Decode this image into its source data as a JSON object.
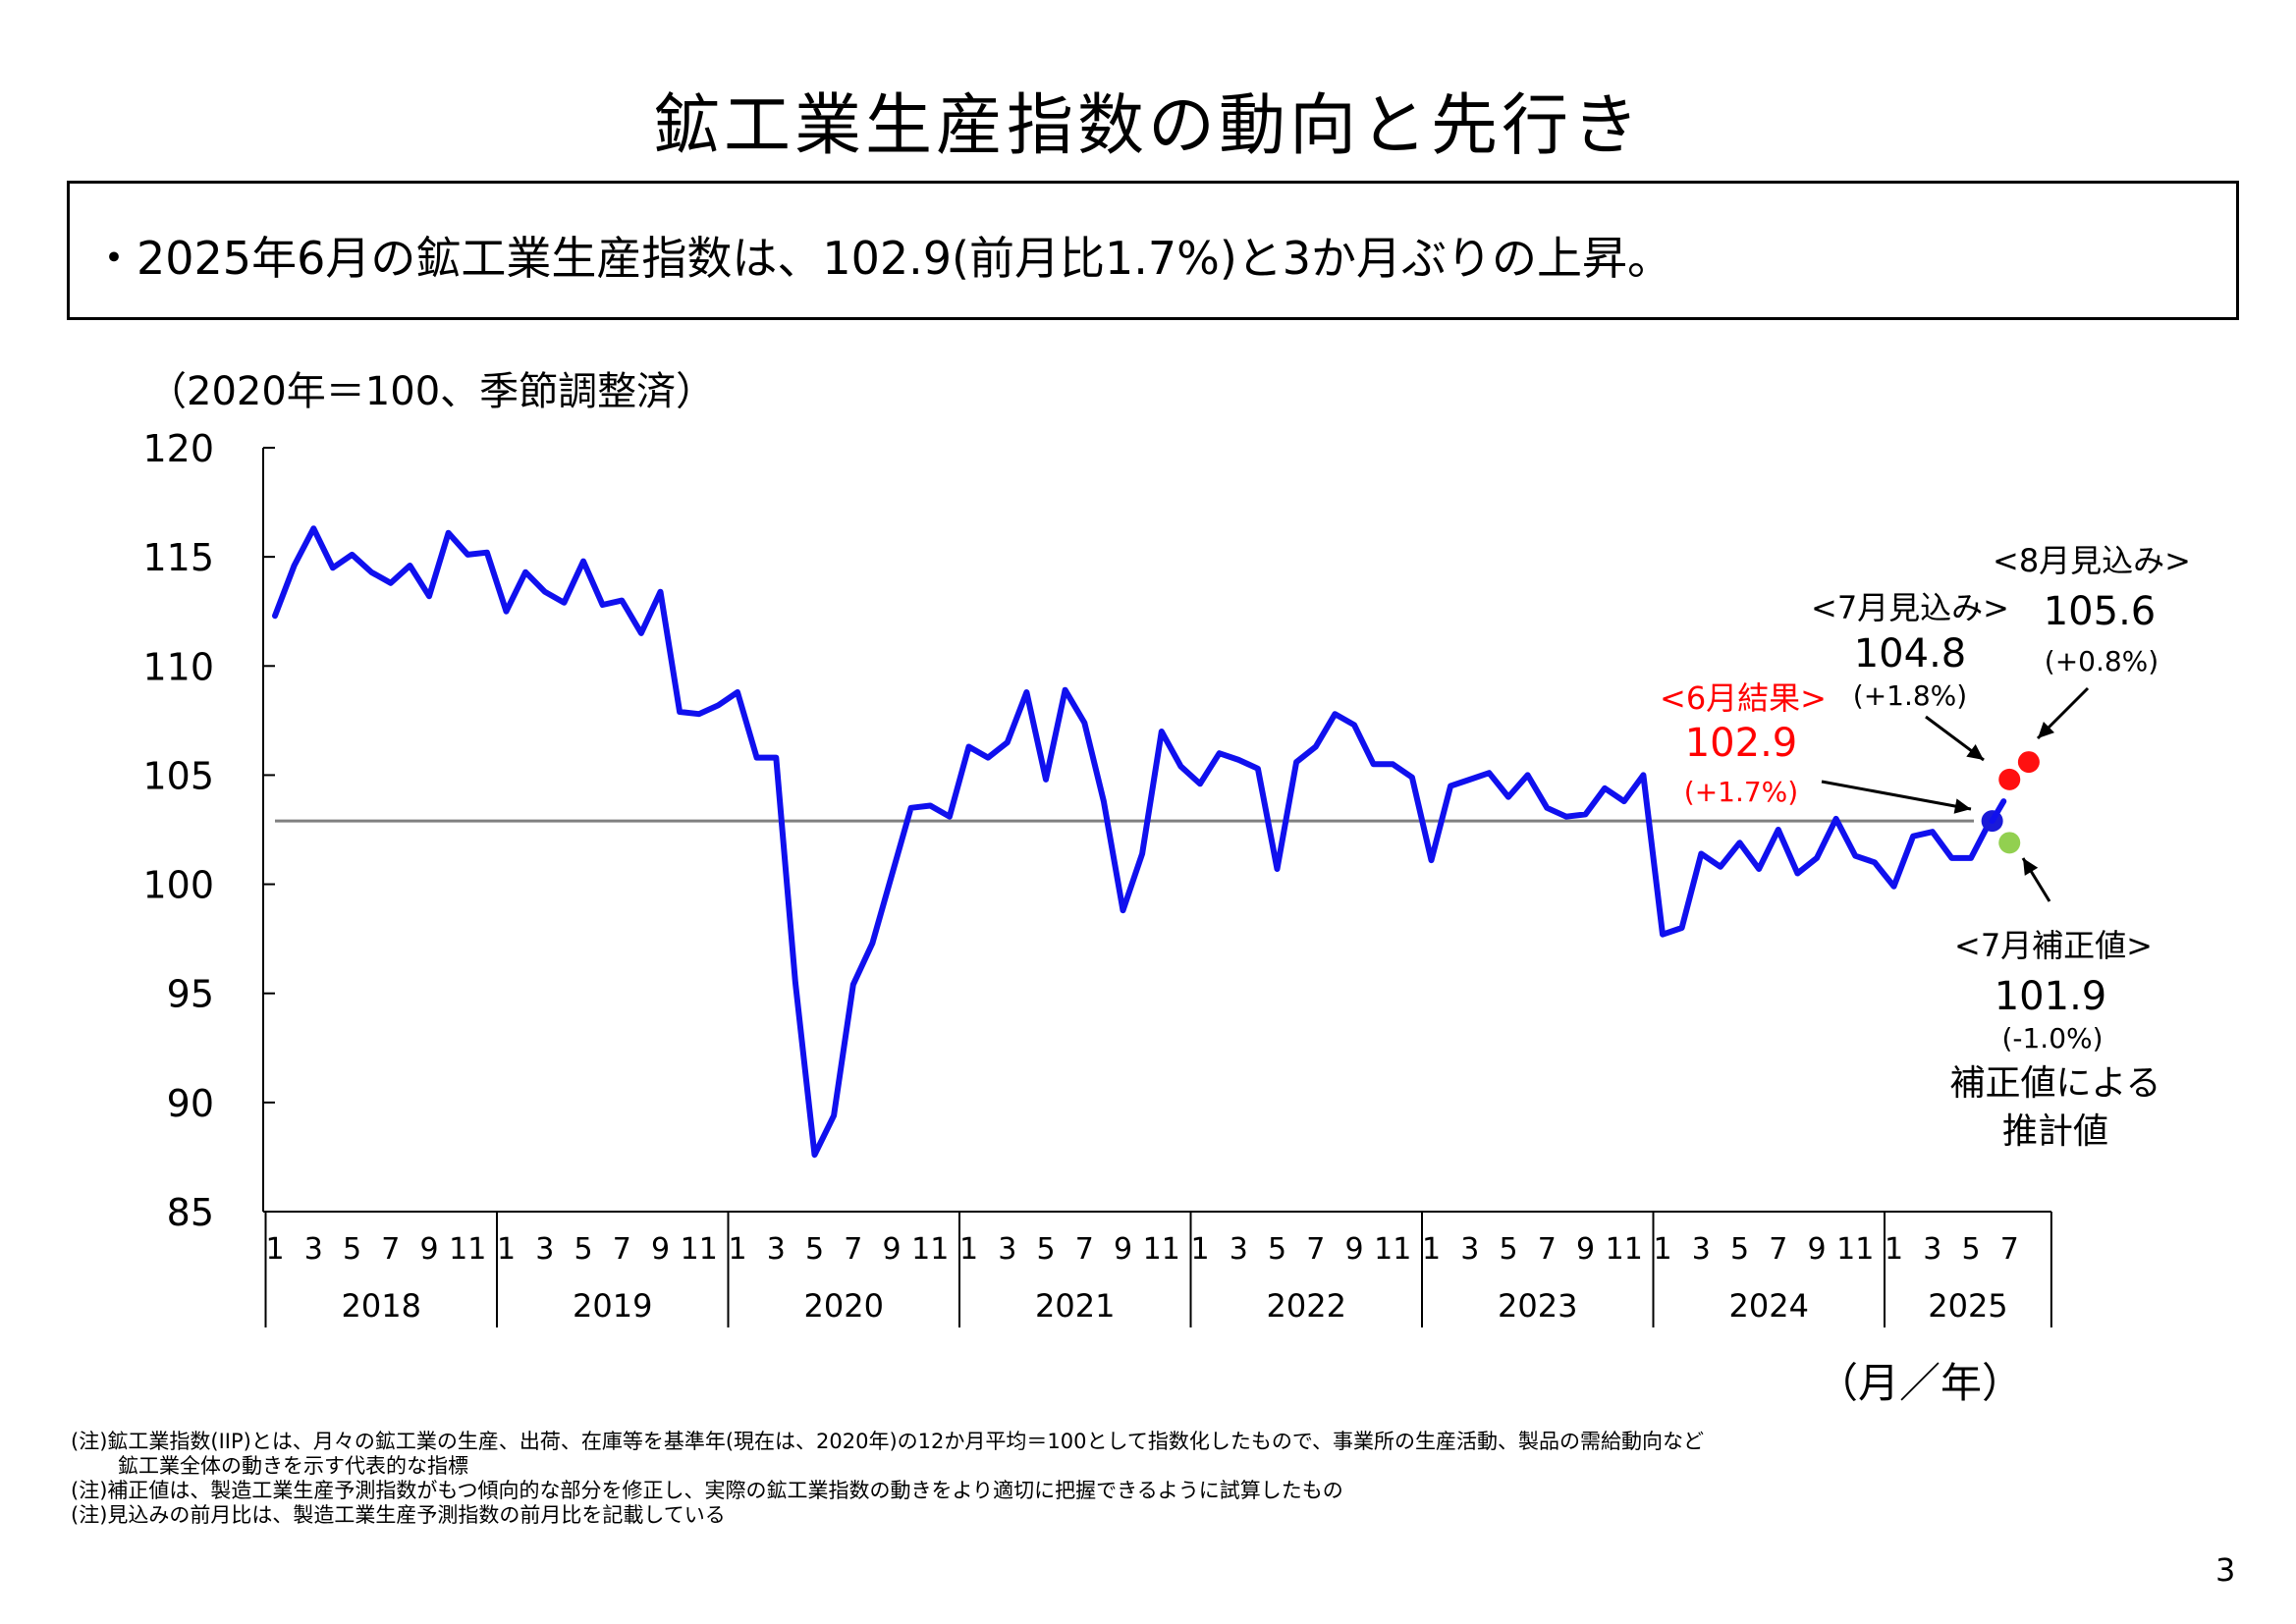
{
  "page": {
    "title": "鉱工業生産指数の動向と先行き",
    "summary": "・2025年6月の鉱工業生産指数は、102.9(前月比1.7%)と3か月ぶりの上昇。",
    "unit_label": "（2020年＝100、季節調整済）",
    "axis_unit_label": "（月／年）",
    "page_number": "3",
    "notes": [
      "(注)鉱工業指数(IIP)とは、月々の鉱工業の生産、出荷、在庫等を基準年(現在は、2020年)の12か月平均＝100として指数化したもので、事業所の生産活動、製品の需給動向など",
      "鉱工業全体の動きを示す代表的な指標",
      "(注)補正値は、製造工業生産予測指数がもつ傾向的な部分を修正し、実際の鉱工業指数の動きをより適切に把握できるように試算したもの",
      "(注)見込みの前月比は、製造工業生産予測指数の前月比を記載している"
    ]
  },
  "chart_data": {
    "type": "line",
    "ylim": [
      85,
      120
    ],
    "yticks": [
      "85",
      "90",
      "95",
      "100",
      "105",
      "110",
      "115",
      "120"
    ],
    "month_tick_labels": [
      "1",
      "3",
      "5",
      "7",
      "9",
      "11"
    ],
    "month_tick_labels_2025": [
      "1",
      "3",
      "5",
      "7"
    ],
    "years": [
      "2018",
      "2019",
      "2020",
      "2021",
      "2022",
      "2023",
      "2024",
      "2025"
    ],
    "series": [
      {
        "color": "#1010ee",
        "start": "2018-01",
        "values": [
          112.3,
          114.6,
          116.3,
          114.5,
          115.1,
          114.3,
          113.8,
          114.6,
          113.2,
          116.1,
          115.1,
          115.2,
          112.5,
          114.3,
          113.4,
          112.9,
          114.8,
          112.8,
          113.0,
          111.5,
          113.4,
          107.9,
          107.8,
          108.2,
          108.8,
          105.8,
          105.8,
          95.5,
          87.6,
          89.4,
          95.4,
          97.3,
          100.4,
          103.5,
          103.6,
          103.1,
          106.3,
          105.8,
          106.5,
          108.8,
          104.8,
          108.9,
          107.4,
          103.8,
          98.8,
          101.4,
          107.0,
          105.4,
          104.6,
          106.0,
          105.7,
          105.3,
          100.7,
          105.6,
          106.3,
          107.8,
          107.3,
          105.5,
          105.5,
          104.9,
          101.1,
          104.5,
          104.8,
          105.1,
          104.0,
          105.0,
          103.5,
          103.1,
          103.2,
          104.4,
          103.8,
          105.0,
          97.7,
          98.0,
          101.4,
          100.8,
          101.9,
          100.7,
          102.5,
          100.5,
          101.2,
          103.0,
          101.3,
          101.0,
          99.9,
          102.2,
          102.4,
          101.2,
          101.2,
          102.9
        ]
      }
    ],
    "reference_line": {
      "value": 102.9,
      "color": "#808080"
    },
    "points": [
      {
        "period": "2025-06",
        "value": 102.9,
        "color": "#1a1ad8",
        "label": "<6月結果>",
        "value_label": "102.9",
        "change_label": "(+1.7%)",
        "text_color": "#ff0000"
      },
      {
        "period": "2025-07",
        "value": 104.8,
        "color": "#ff1010",
        "label": "<7月見込み>",
        "value_label": "104.8",
        "change_label": "(+1.8%)",
        "text_color": "#000000"
      },
      {
        "period": "2025-08",
        "value": 105.6,
        "color": "#ff1010",
        "label": "<8月見込み>",
        "value_label": "105.6",
        "change_label": "(+0.8%)",
        "text_color": "#000000"
      },
      {
        "period": "2025-07",
        "value": 101.9,
        "color": "#92d050",
        "label": "<7月補正値>",
        "value_label": "101.9",
        "change_label": "(-1.0%)",
        "extra_label_1": "補正値による",
        "extra_label_2": "推計値",
        "text_color": "#000000"
      }
    ]
  }
}
